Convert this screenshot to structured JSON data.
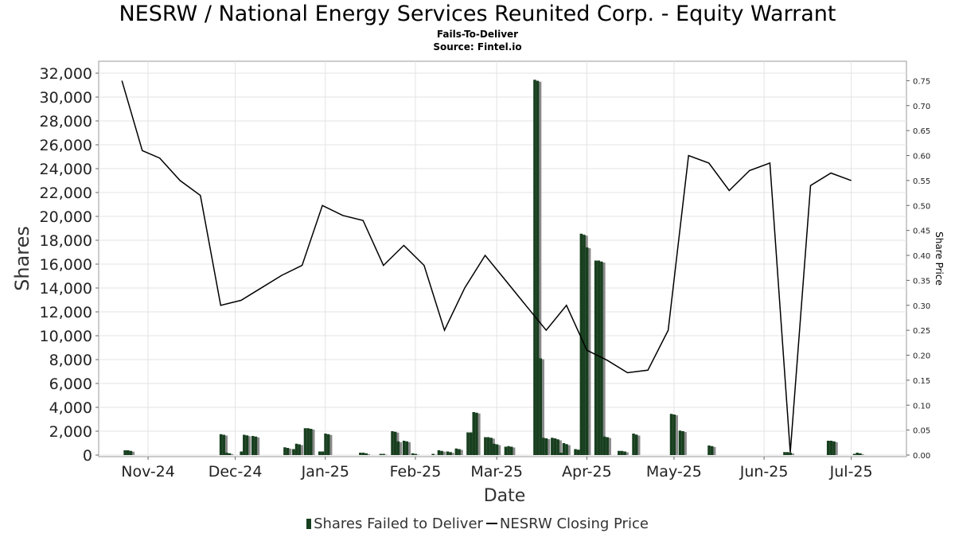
{
  "chart_data": {
    "type": "bar",
    "title": "NESRW / National Energy Services Reunited Corp. - Equity Warrant",
    "subtitle": "Fails-To-Deliver",
    "source": "Source: Fintel.io",
    "xlabel": "Date",
    "ylabel": "Shares",
    "y2label": "Share Price",
    "ylim": [
      0,
      32000
    ],
    "y2lim": [
      0,
      0.765
    ],
    "y_ticks": [
      "0",
      "2,000",
      "4,000",
      "6,000",
      "8,000",
      "10,000",
      "12,000",
      "14,000",
      "16,000",
      "18,000",
      "20,000",
      "22,000",
      "24,000",
      "26,000",
      "28,000",
      "30,000",
      "32,000"
    ],
    "y2_ticks": [
      "0.00",
      "0.05",
      "0.10",
      "0.15",
      "0.20",
      "0.25",
      "0.30",
      "0.35",
      "0.40",
      "0.45",
      "0.50",
      "0.55",
      "0.60",
      "0.65",
      "0.70",
      "0.75"
    ],
    "x_ticks": [
      {
        "label": "Nov-24",
        "date": "2024-11-01"
      },
      {
        "label": "Dec-24",
        "date": "2024-12-01"
      },
      {
        "label": "Jan-25",
        "date": "2025-01-01"
      },
      {
        "label": "Feb-25",
        "date": "2025-02-01"
      },
      {
        "label": "Mar-25",
        "date": "2025-03-01"
      },
      {
        "label": "Apr-25",
        "date": "2025-04-01"
      },
      {
        "label": "May-25",
        "date": "2025-05-01"
      },
      {
        "label": "Jun-25",
        "date": "2025-06-01"
      },
      {
        "label": "Jul-25",
        "date": "2025-07-01"
      }
    ],
    "grid": true,
    "legend_position": "bottom",
    "series": [
      {
        "name": "Shares Failed to Deliver",
        "type": "bar",
        "axis": "left",
        "color": "#173f1e",
        "points": [
          {
            "date": "2024-10-24",
            "value": 400
          },
          {
            "date": "2024-10-25",
            "value": 400
          },
          {
            "date": "2024-10-26",
            "value": 350
          },
          {
            "date": "2024-11-26",
            "value": 1750
          },
          {
            "date": "2024-11-27",
            "value": 1700
          },
          {
            "date": "2024-11-28",
            "value": 200
          },
          {
            "date": "2024-11-29",
            "value": 150
          },
          {
            "date": "2024-12-03",
            "value": 300
          },
          {
            "date": "2024-12-04",
            "value": 1700
          },
          {
            "date": "2024-12-05",
            "value": 1650
          },
          {
            "date": "2024-12-07",
            "value": 1600
          },
          {
            "date": "2024-12-08",
            "value": 1550
          },
          {
            "date": "2024-12-18",
            "value": 650
          },
          {
            "date": "2024-12-19",
            "value": 600
          },
          {
            "date": "2024-12-21",
            "value": 500
          },
          {
            "date": "2024-12-22",
            "value": 950
          },
          {
            "date": "2024-12-23",
            "value": 900
          },
          {
            "date": "2024-12-25",
            "value": 2250
          },
          {
            "date": "2024-12-26",
            "value": 2250
          },
          {
            "date": "2024-12-27",
            "value": 2200
          },
          {
            "date": "2024-12-30",
            "value": 300
          },
          {
            "date": "2024-12-31",
            "value": 300
          },
          {
            "date": "2025-01-01",
            "value": 1800
          },
          {
            "date": "2025-01-02",
            "value": 1750
          },
          {
            "date": "2025-01-13",
            "value": 200
          },
          {
            "date": "2025-01-14",
            "value": 200
          },
          {
            "date": "2025-01-15",
            "value": 150
          },
          {
            "date": "2025-01-20",
            "value": 100
          },
          {
            "date": "2025-01-21",
            "value": 100
          },
          {
            "date": "2025-01-24",
            "value": 2000
          },
          {
            "date": "2025-01-25",
            "value": 1950
          },
          {
            "date": "2025-01-26",
            "value": 1150
          },
          {
            "date": "2025-01-28",
            "value": 1200
          },
          {
            "date": "2025-01-29",
            "value": 1150
          },
          {
            "date": "2025-01-31",
            "value": 150
          },
          {
            "date": "2025-02-01",
            "value": 100
          },
          {
            "date": "2025-02-07",
            "value": 100
          },
          {
            "date": "2025-02-09",
            "value": 400
          },
          {
            "date": "2025-02-10",
            "value": 350
          },
          {
            "date": "2025-02-12",
            "value": 300
          },
          {
            "date": "2025-02-13",
            "value": 250
          },
          {
            "date": "2025-02-15",
            "value": 550
          },
          {
            "date": "2025-02-16",
            "value": 500
          },
          {
            "date": "2025-02-19",
            "value": 1900
          },
          {
            "date": "2025-02-20",
            "value": 1900
          },
          {
            "date": "2025-02-21",
            "value": 3600
          },
          {
            "date": "2025-02-22",
            "value": 3550
          },
          {
            "date": "2025-02-25",
            "value": 1500
          },
          {
            "date": "2025-02-26",
            "value": 1500
          },
          {
            "date": "2025-02-27",
            "value": 1450
          },
          {
            "date": "2025-02-28",
            "value": 950
          },
          {
            "date": "2025-03-01",
            "value": 900
          },
          {
            "date": "2025-03-04",
            "value": 700
          },
          {
            "date": "2025-03-05",
            "value": 750
          },
          {
            "date": "2025-03-06",
            "value": 700
          },
          {
            "date": "2025-03-14",
            "value": 31450
          },
          {
            "date": "2025-03-15",
            "value": 31350
          },
          {
            "date": "2025-03-15",
            "value": 8200
          },
          {
            "date": "2025-03-16",
            "value": 8100
          },
          {
            "date": "2025-03-17",
            "value": 1450
          },
          {
            "date": "2025-03-18",
            "value": 1400
          },
          {
            "date": "2025-03-20",
            "value": 1450
          },
          {
            "date": "2025-03-21",
            "value": 1400
          },
          {
            "date": "2025-03-22",
            "value": 1300
          },
          {
            "date": "2025-03-23",
            "value": 200
          },
          {
            "date": "2025-03-24",
            "value": 1000
          },
          {
            "date": "2025-03-25",
            "value": 900
          },
          {
            "date": "2025-03-28",
            "value": 500
          },
          {
            "date": "2025-03-29",
            "value": 450
          },
          {
            "date": "2025-03-30",
            "value": 18550
          },
          {
            "date": "2025-03-31",
            "value": 18450
          },
          {
            "date": "2025-03-31",
            "value": 17500
          },
          {
            "date": "2025-04-01",
            "value": 17400
          },
          {
            "date": "2025-04-04",
            "value": 16300
          },
          {
            "date": "2025-04-05",
            "value": 16300
          },
          {
            "date": "2025-04-06",
            "value": 16200
          },
          {
            "date": "2025-04-07",
            "value": 1550
          },
          {
            "date": "2025-04-08",
            "value": 1500
          },
          {
            "date": "2025-04-12",
            "value": 350
          },
          {
            "date": "2025-04-13",
            "value": 350
          },
          {
            "date": "2025-04-14",
            "value": 300
          },
          {
            "date": "2025-04-17",
            "value": 1800
          },
          {
            "date": "2025-04-18",
            "value": 1700
          },
          {
            "date": "2025-04-30",
            "value": 3450
          },
          {
            "date": "2025-05-01",
            "value": 3400
          },
          {
            "date": "2025-05-01",
            "value": 2000
          },
          {
            "date": "2025-05-03",
            "value": 2050
          },
          {
            "date": "2025-05-04",
            "value": 2000
          },
          {
            "date": "2025-05-13",
            "value": 800
          },
          {
            "date": "2025-05-14",
            "value": 750
          },
          {
            "date": "2025-06-08",
            "value": 250
          },
          {
            "date": "2025-06-09",
            "value": 250
          },
          {
            "date": "2025-06-10",
            "value": 200
          },
          {
            "date": "2025-06-23",
            "value": 1200
          },
          {
            "date": "2025-06-24",
            "value": 1200
          },
          {
            "date": "2025-06-25",
            "value": 1150
          },
          {
            "date": "2025-07-02",
            "value": 100
          },
          {
            "date": "2025-07-03",
            "value": 200
          },
          {
            "date": "2025-07-04",
            "value": 150
          }
        ]
      },
      {
        "name": "NESRW Closing Price",
        "type": "line",
        "axis": "right",
        "color": "#000000",
        "points": [
          {
            "date": "2024-10-23",
            "value": 0.75
          },
          {
            "date": "2024-10-30",
            "value": 0.61
          },
          {
            "date": "2024-11-05",
            "value": 0.595
          },
          {
            "date": "2024-11-12",
            "value": 0.55
          },
          {
            "date": "2024-11-19",
            "value": 0.52
          },
          {
            "date": "2024-11-26",
            "value": 0.3
          },
          {
            "date": "2024-12-03",
            "value": 0.31
          },
          {
            "date": "2024-12-10",
            "value": 0.335
          },
          {
            "date": "2024-12-17",
            "value": 0.36
          },
          {
            "date": "2024-12-24",
            "value": 0.38
          },
          {
            "date": "2024-12-31",
            "value": 0.5
          },
          {
            "date": "2025-01-07",
            "value": 0.48
          },
          {
            "date": "2025-01-14",
            "value": 0.47
          },
          {
            "date": "2025-01-21",
            "value": 0.38
          },
          {
            "date": "2025-01-28",
            "value": 0.42
          },
          {
            "date": "2025-02-04",
            "value": 0.38
          },
          {
            "date": "2025-02-11",
            "value": 0.25
          },
          {
            "date": "2025-02-18",
            "value": 0.335
          },
          {
            "date": "2025-02-25",
            "value": 0.4
          },
          {
            "date": "2025-03-04",
            "value": 0.35
          },
          {
            "date": "2025-03-11",
            "value": 0.3
          },
          {
            "date": "2025-03-18",
            "value": 0.25
          },
          {
            "date": "2025-03-25",
            "value": 0.3
          },
          {
            "date": "2025-04-01",
            "value": 0.21
          },
          {
            "date": "2025-04-08",
            "value": 0.19
          },
          {
            "date": "2025-04-15",
            "value": 0.165
          },
          {
            "date": "2025-04-22",
            "value": 0.17
          },
          {
            "date": "2025-04-29",
            "value": 0.25
          },
          {
            "date": "2025-05-06",
            "value": 0.6
          },
          {
            "date": "2025-05-13",
            "value": 0.585
          },
          {
            "date": "2025-05-20",
            "value": 0.53
          },
          {
            "date": "2025-05-27",
            "value": 0.57
          },
          {
            "date": "2025-06-03",
            "value": 0.585
          },
          {
            "date": "2025-06-10",
            "value": 0.005
          },
          {
            "date": "2025-06-17",
            "value": 0.54
          },
          {
            "date": "2025-06-24",
            "value": 0.565
          },
          {
            "date": "2025-07-01",
            "value": 0.55
          }
        ]
      }
    ]
  }
}
